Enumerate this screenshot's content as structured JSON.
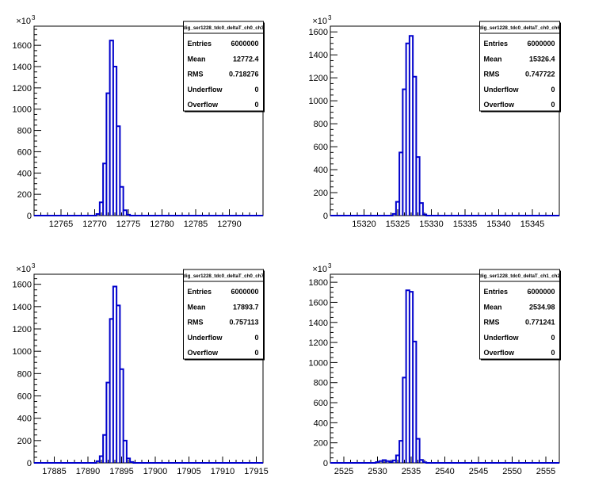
{
  "chart_data": [
    {
      "type": "histogram",
      "stats_title": "dig_ser1228_tdc0_deltaT_ch0_ch3",
      "y_exponent": "3",
      "xlim": [
        12761,
        12795
      ],
      "ylim": [
        0,
        1780
      ],
      "xticks": [
        12765,
        12770,
        12775,
        12780,
        12785,
        12790
      ],
      "yticks": [
        0,
        200,
        400,
        600,
        800,
        1000,
        1200,
        1400,
        1600
      ],
      "bins": [
        {
          "x": 12770.5,
          "y": 15
        },
        {
          "x": 12771.0,
          "y": 125
        },
        {
          "x": 12771.5,
          "y": 490
        },
        {
          "x": 12772.0,
          "y": 1150
        },
        {
          "x": 12772.5,
          "y": 1645
        },
        {
          "x": 12773.0,
          "y": 1400
        },
        {
          "x": 12773.5,
          "y": 840
        },
        {
          "x": 12774.0,
          "y": 270
        },
        {
          "x": 12774.5,
          "y": 50
        },
        {
          "x": 12775.0,
          "y": 8
        }
      ],
      "stats": [
        {
          "label": "Entries",
          "value": "6000000"
        },
        {
          "label": "Mean",
          "value": "12772.4"
        },
        {
          "label": "RMS",
          "value": "0.718276"
        },
        {
          "label": "Underflow",
          "value": "0"
        },
        {
          "label": "Overflow",
          "value": "0"
        }
      ]
    },
    {
      "type": "histogram",
      "stats_title": "dig_ser1228_tdc0_deltaT_ch0_ch6",
      "y_exponent": "3",
      "xlim": [
        15315,
        15349
      ],
      "ylim": [
        0,
        1650
      ],
      "xticks": [
        15320,
        15325,
        15330,
        15335,
        15340,
        15345
      ],
      "yticks": [
        0,
        200,
        400,
        600,
        800,
        1000,
        1200,
        1400,
        1600
      ],
      "bins": [
        {
          "x": 15324.5,
          "y": 15
        },
        {
          "x": 15325.0,
          "y": 120
        },
        {
          "x": 15325.5,
          "y": 550
        },
        {
          "x": 15326.0,
          "y": 1100
        },
        {
          "x": 15326.5,
          "y": 1500
        },
        {
          "x": 15327.0,
          "y": 1565
        },
        {
          "x": 15327.5,
          "y": 1210
        },
        {
          "x": 15328.0,
          "y": 510
        },
        {
          "x": 15328.5,
          "y": 110
        },
        {
          "x": 15329.0,
          "y": 10
        }
      ],
      "stats": [
        {
          "label": "Entries",
          "value": "6000000"
        },
        {
          "label": "Mean",
          "value": "15326.4"
        },
        {
          "label": "RMS",
          "value": "0.747722"
        },
        {
          "label": "Underflow",
          "value": "0"
        },
        {
          "label": "Overflow",
          "value": "0"
        }
      ]
    },
    {
      "type": "histogram",
      "stats_title": "dig_ser1228_tdc0_deltaT_ch0_ch7",
      "y_exponent": "3",
      "xlim": [
        17882,
        17916
      ],
      "ylim": [
        0,
        1690
      ],
      "xticks": [
        17885,
        17890,
        17895,
        17900,
        17905,
        17910,
        17915
      ],
      "yticks": [
        0,
        200,
        400,
        600,
        800,
        1000,
        1200,
        1400,
        1600
      ],
      "bins": [
        {
          "x": 17891.5,
          "y": 15
        },
        {
          "x": 17892.0,
          "y": 60
        },
        {
          "x": 17892.5,
          "y": 250
        },
        {
          "x": 17893.0,
          "y": 720
        },
        {
          "x": 17893.5,
          "y": 1290
        },
        {
          "x": 17894.0,
          "y": 1580
        },
        {
          "x": 17894.5,
          "y": 1410
        },
        {
          "x": 17895.0,
          "y": 840
        },
        {
          "x": 17895.5,
          "y": 200
        },
        {
          "x": 17896.0,
          "y": 40
        },
        {
          "x": 17896.5,
          "y": 8
        }
      ],
      "stats": [
        {
          "label": "Entries",
          "value": "6000000"
        },
        {
          "label": "Mean",
          "value": "17893.7"
        },
        {
          "label": "RMS",
          "value": "0.757113"
        },
        {
          "label": "Underflow",
          "value": "0"
        },
        {
          "label": "Overflow",
          "value": "0"
        }
      ]
    },
    {
      "type": "histogram",
      "stats_title": "dig_ser1228_tdc0_deltaT_ch1_ch2",
      "y_exponent": "3",
      "xlim": [
        2523,
        2557
      ],
      "ylim": [
        0,
        1880
      ],
      "xticks": [
        2525,
        2530,
        2535,
        2540,
        2545,
        2550,
        2555
      ],
      "yticks": [
        0,
        200,
        400,
        600,
        800,
        1000,
        1200,
        1400,
        1600,
        1800
      ],
      "bins": [
        {
          "x": 2530.0,
          "y": 8
        },
        {
          "x": 2530.5,
          "y": 18
        },
        {
          "x": 2531.0,
          "y": 28
        },
        {
          "x": 2531.5,
          "y": 18
        },
        {
          "x": 2532.0,
          "y": 10
        },
        {
          "x": 2532.5,
          "y": 25
        },
        {
          "x": 2533.0,
          "y": 75
        },
        {
          "x": 2533.5,
          "y": 220
        },
        {
          "x": 2534.0,
          "y": 850
        },
        {
          "x": 2534.5,
          "y": 1720
        },
        {
          "x": 2535.0,
          "y": 1705
        },
        {
          "x": 2535.5,
          "y": 1210
        },
        {
          "x": 2536.0,
          "y": 240
        },
        {
          "x": 2536.5,
          "y": 30
        },
        {
          "x": 2537.0,
          "y": 6
        }
      ],
      "stats": [
        {
          "label": "Entries",
          "value": "6000000"
        },
        {
          "label": "Mean",
          "value": "2534.98"
        },
        {
          "label": "RMS",
          "value": "0.771241"
        },
        {
          "label": "Underflow",
          "value": "0"
        },
        {
          "label": "Overflow",
          "value": "0"
        }
      ]
    }
  ]
}
